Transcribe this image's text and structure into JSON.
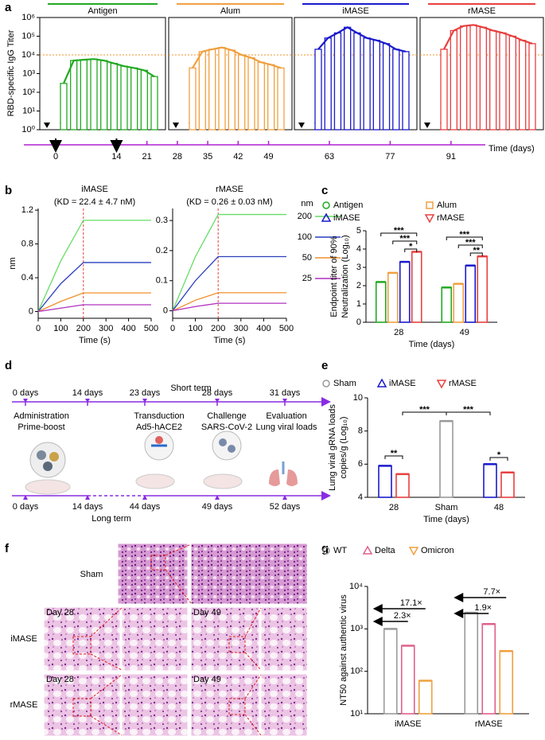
{
  "panel_labels": [
    "a",
    "b",
    "c",
    "d",
    "e",
    "f",
    "g"
  ],
  "chart_data": [
    {
      "type": "bar-line",
      "ylabel": "RBD-specific IgG Titer",
      "log_y": true,
      "ylim": [
        1,
        1000000
      ],
      "yticks": [
        {
          "value": 1,
          "label": "10⁰"
        },
        {
          "value": 10,
          "label": "10¹"
        },
        {
          "value": 100,
          "label": "10²"
        },
        {
          "value": 1000,
          "label": "10³"
        },
        {
          "value": 10000,
          "label": "10⁴"
        },
        {
          "value": 100000,
          "label": "10⁵"
        },
        {
          "value": 1000000,
          "label": "10⁶"
        }
      ],
      "reference_line": 10000,
      "series": [
        {
          "name": "Antigen",
          "color": "#22aa22",
          "values": [
            300,
            5000,
            5500,
            6000,
            5000,
            3500,
            2500,
            2000,
            1500,
            700
          ]
        },
        {
          "name": "Alum",
          "color": "#f0a040",
          "values": [
            2000,
            15000,
            20000,
            25000,
            18000,
            10000,
            7000,
            4000,
            3000,
            2000
          ]
        },
        {
          "name": "iMASE",
          "color": "#1a1acc",
          "values": [
            20000,
            80000,
            150000,
            300000,
            150000,
            80000,
            60000,
            40000,
            20000,
            15000
          ]
        },
        {
          "name": "rMASE",
          "color": "#e84040",
          "values": [
            20000,
            200000,
            350000,
            400000,
            300000,
            200000,
            150000,
            100000,
            60000,
            40000
          ]
        }
      ],
      "time_axis": {
        "ticks": [
          0,
          14,
          21,
          28,
          35,
          42,
          49,
          63,
          77,
          91
        ],
        "label": "Time (days)"
      }
    },
    {
      "type": "line",
      "title": "iMASE",
      "subtitle": "(KD = 22.4 ± 4.7 nM)",
      "ylabel": "nm",
      "xlabel": "Time (s)",
      "x": [
        0,
        100,
        200,
        500
      ],
      "xlim": [
        0,
        500
      ],
      "xticks": [
        0,
        100,
        200,
        300,
        400,
        500
      ],
      "ylim": [
        -0.08,
        1.22
      ],
      "yticks": [
        0,
        0.4,
        0.8,
        1.2
      ],
      "vline": 200,
      "series": [
        {
          "color": "#66dd66",
          "values": [
            0,
            0.6,
            1.08,
            1.08
          ]
        },
        {
          "color": "#2a3fbf",
          "values": [
            0,
            0.33,
            0.58,
            0.58
          ]
        },
        {
          "color": "#f0902a",
          "values": [
            0,
            0.12,
            0.22,
            0.22
          ]
        },
        {
          "color": "#b030c0",
          "values": [
            0,
            0.04,
            0.08,
            0.08
          ]
        }
      ]
    },
    {
      "type": "line",
      "title": "rMASE",
      "subtitle": "(KD = 0.26 ± 0.03 nM)",
      "xlabel": "Time (s)",
      "legend_title": "nm",
      "x": [
        0,
        100,
        200,
        500
      ],
      "xlim": [
        0,
        500
      ],
      "xticks": [
        0,
        100,
        200,
        300,
        400,
        500
      ],
      "ylim": [
        -0.025,
        0.34
      ],
      "yticks": [
        0,
        0.1,
        0.2,
        0.3
      ],
      "vline": 200,
      "series": [
        {
          "name": "200",
          "color": "#66dd66",
          "values": [
            0,
            0.18,
            0.32,
            0.32
          ]
        },
        {
          "name": "100",
          "color": "#2a3fbf",
          "values": [
            0,
            0.1,
            0.18,
            0.18
          ]
        },
        {
          "name": "50",
          "color": "#f0902a",
          "values": [
            0,
            0.035,
            0.06,
            0.06
          ]
        },
        {
          "name": "25",
          "color": "#b030c0",
          "values": [
            0,
            0.014,
            0.025,
            0.025
          ]
        }
      ]
    },
    {
      "type": "grouped-bar",
      "ylabel": [
        "Endpoint titer of 90%",
        "Neutralization (Log₁₀)"
      ],
      "xlabel": "Time (days)",
      "categories": [
        "28",
        "49"
      ],
      "ylim": [
        0,
        5
      ],
      "yticks": [
        0,
        1,
        2,
        3,
        4,
        5
      ],
      "series": [
        {
          "name": "Antigen",
          "color": "#22aa22",
          "marker": "circle",
          "values": [
            2.2,
            1.9
          ]
        },
        {
          "name": "Alum",
          "color": "#f0a040",
          "marker": "square",
          "values": [
            2.7,
            2.1
          ]
        },
        {
          "name": "iMASE",
          "color": "#1a1acc",
          "marker": "triangle-up",
          "values": [
            3.3,
            3.1
          ]
        },
        {
          "name": "rMASE",
          "color": "#e84040",
          "marker": "triangle-down",
          "values": [
            3.85,
            3.6
          ]
        }
      ],
      "annotations": [
        "***",
        "***",
        "*",
        "***",
        "***",
        "**"
      ]
    },
    {
      "type": "grouped-bar",
      "ylabel": [
        "Lung viral gRNA loads",
        "copies/g (Log₁₀)"
      ],
      "xlabel": "Time (days)",
      "categories": [
        "28",
        "Sham",
        "48"
      ],
      "ylim": [
        4,
        10
      ],
      "yticks": [
        4,
        6,
        8,
        10
      ],
      "series": [
        {
          "name": "Sham",
          "color": "#999999",
          "marker": "circle",
          "values": [
            null,
            8.6,
            null
          ]
        },
        {
          "name": "iMASE",
          "color": "#1a1acc",
          "marker": "triangle-up",
          "values": [
            5.9,
            null,
            6.0
          ]
        },
        {
          "name": "rMASE",
          "color": "#e84040",
          "marker": "triangle-down",
          "values": [
            5.4,
            null,
            5.5
          ]
        }
      ],
      "annotations": [
        "**",
        "***",
        "***",
        "*"
      ]
    },
    {
      "type": "grouped-bar",
      "ylabel": [
        "NT50 against authentic virus"
      ],
      "log_y": true,
      "categories": [
        "iMASE",
        "rMASE"
      ],
      "ylim": [
        10,
        10000
      ],
      "yticks": [
        {
          "value": 10,
          "label": "10¹"
        },
        {
          "value": 100,
          "label": "10²"
        },
        {
          "value": 1000,
          "label": "10³"
        },
        {
          "value": 10000,
          "label": "10⁴"
        }
      ],
      "series": [
        {
          "name": "WT",
          "color": "#999999",
          "marker": "circle",
          "values": [
            1000,
            2400
          ]
        },
        {
          "name": "Delta",
          "color": "#e0608a",
          "marker": "triangle-up",
          "values": [
            400,
            1300
          ]
        },
        {
          "name": "Omicron",
          "color": "#f0a040",
          "marker": "triangle-down",
          "values": [
            60,
            300
          ]
        }
      ],
      "annotations": [
        "17.1×",
        "2.3×",
        "7.7×",
        "1.9×"
      ]
    }
  ],
  "timeline": {
    "short_term": {
      "label": "Short term",
      "days": [
        "0 days",
        "14 days",
        "23 days",
        "28 days",
        "31 days"
      ],
      "events": [
        [
          "Administration",
          "Prime-boost"
        ],
        [
          "Transduction",
          "Ad5-hACE2"
        ],
        [
          "Challenge",
          "SARS-CoV-2"
        ],
        [
          "Evaluation",
          "Lung viral loads"
        ]
      ]
    },
    "long_term": {
      "label": "Long term",
      "days": [
        "0 days",
        "14 days",
        "44 days",
        "49 days",
        "52 days"
      ]
    }
  },
  "histology": {
    "rows": [
      "Sham",
      "iMASE",
      "rMASE"
    ],
    "insets": [
      "Day 28",
      "Day 49",
      "Day 28",
      "Day 49"
    ]
  }
}
